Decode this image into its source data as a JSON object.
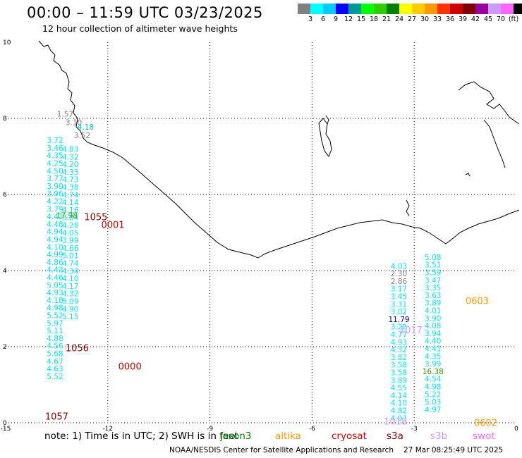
{
  "header": {
    "title": "00:00 – 11:59 UTC 03/23/2025",
    "subtitle": "12 hour collection of altimeter wave heights"
  },
  "colorbar": {
    "colors": [
      "#808080",
      "#00ffff",
      "#00ccff",
      "#0000ff",
      "#009999",
      "#00ff00",
      "#33cc00",
      "#008000",
      "#ffff00",
      "#ffcc00",
      "#ff9900",
      "#ff3300",
      "#cc0000",
      "#800000",
      "#990099",
      "#cc99ff",
      "#ff66ff",
      "#000000"
    ],
    "labels": [
      "3",
      "6",
      "9",
      "12",
      "15",
      "18",
      "21",
      "24",
      "27",
      "30",
      "33",
      "36",
      "39",
      "42",
      "45",
      "70",
      "(ft)"
    ]
  },
  "axes": {
    "x_ticks": [
      "-15",
      "-12",
      "-9",
      "-6",
      "-3",
      "0"
    ],
    "y_ticks": [
      "0",
      "2",
      "4",
      "6",
      "8",
      "10"
    ]
  },
  "tracks": [
    {
      "name": "track-west-1",
      "color": "#00e5ee",
      "lon": -13.55,
      "lat_start": 7.35,
      "lat_step": -0.2,
      "values": [
        "3.72",
        "3.46",
        "4.35",
        "4.25",
        "4.50",
        "3.77",
        "3.90",
        "3.96",
        "4.22",
        "3.79",
        "4.41",
        "4.48",
        "4.94",
        "4.94",
        "4.10",
        "4.99",
        "4.86",
        "4.43",
        "4.46",
        "5.05",
        "4.93",
        "4.18",
        "4.98",
        "5.52",
        "5.97",
        "5.11",
        "4.88",
        "4.56",
        "5.68",
        "4.67",
        "4.63",
        "5.52"
      ]
    },
    {
      "name": "track-west-2",
      "color": "#00e5ee",
      "lon": -13.1,
      "lat_start": 7.12,
      "lat_step": -0.2,
      "values": [
        "4.83",
        "4.32",
        "4.20",
        "4.33",
        "4.73",
        "4.38",
        "4.74",
        "4.14",
        "4.16",
        "3.84",
        "4.28",
        "4.05",
        "3.99",
        "4.66",
        "5.01",
        "4.74",
        "4.34",
        "4.10",
        "4.17",
        "4.32",
        "5.09",
        "4.90",
        "5.15"
      ]
    },
    {
      "name": "track-east-1",
      "color": "#00e5ee",
      "lon": -3.45,
      "lat_start": 4.05,
      "lat_step": -0.2,
      "values": [
        "4.03",
        "2.30",
        "2.86",
        "3.17",
        "3.45",
        "3.31",
        "3.02",
        "11.79",
        "3.28",
        "4.77",
        "4.93",
        "4.32",
        "3.82",
        "3.58",
        "3.58",
        "3.89",
        "4.55",
        "4.14",
        "4.10",
        "4.82",
        "4.93"
      ]
    },
    {
      "name": "track-east-2",
      "color": "#00e5ee",
      "lon": -2.45,
      "lat_start": 4.28,
      "lat_step": -0.2,
      "values": [
        "5.08",
        "3.51",
        "3.59",
        "3.47",
        "3.35",
        "3.63",
        "3.89",
        "4.01",
        "3.90",
        "4.08",
        "3.94",
        "4.40",
        "4.41",
        "4.35",
        "3.99",
        "16.38",
        "4.54",
        "4.98",
        "5.22",
        "5.03",
        "4.97"
      ]
    }
  ],
  "value_colors": {
    "2.30": "#808080",
    "2.86": "#808080",
    "11.79": "#000099",
    "16.38": "#339900",
    "17.98": "#339900"
  },
  "scattered_values": [
    {
      "text": "1.57",
      "color": "#808080",
      "lon": -13.25,
      "lat": 8.05
    },
    {
      "text": "3.10",
      "color": "#808080",
      "lon": -13.0,
      "lat": 7.82
    },
    {
      "text": "4.18",
      "color": "#00bcd4",
      "lon": -12.65,
      "lat": 7.7
    },
    {
      "text": "3.52",
      "color": "#808080",
      "lon": -12.75,
      "lat": 7.48
    },
    {
      "text": "17.98",
      "color": "#339900",
      "lon": -13.2,
      "lat": 5.38
    }
  ],
  "time_labels": [
    {
      "text": "1055",
      "color": "#800000",
      "lon": -12.35,
      "lat": 5.32
    },
    {
      "text": "0001",
      "color": "#cc0000",
      "lon": -11.85,
      "lat": 5.12
    },
    {
      "text": "1056",
      "color": "#800000",
      "lon": -12.9,
      "lat": 1.88
    },
    {
      "text": "0000",
      "color": "#cc0000",
      "lon": -11.35,
      "lat": 1.4
    },
    {
      "text": "1057",
      "color": "#800000",
      "lon": -13.5,
      "lat": 0.08
    },
    {
      "text": "0603",
      "color": "#ff9900",
      "lon": -1.15,
      "lat": 3.12
    },
    {
      "text": "1017",
      "color": "#cc99ff",
      "lon": -3.1,
      "lat": 2.35
    },
    {
      "text": "1018",
      "color": "#cc99ff",
      "lon": -3.55,
      "lat": -0.05
    },
    {
      "text": "0602",
      "color": "#ff9900",
      "lon": -0.9,
      "lat": -0.08
    }
  ],
  "legend": {
    "note": "note: 1) Time is in UTC; 2) SWH is in feet",
    "items": [
      {
        "label": "jason3",
        "color": "#008000"
      },
      {
        "label": "altika",
        "color": "#ff9900"
      },
      {
        "label": "cryosat",
        "color": "#cc0000"
      },
      {
        "label": "s3a",
        "color": "#800000"
      },
      {
        "label": "s3b",
        "color": "#cc99ff"
      },
      {
        "label": "swot",
        "color": "#ff66ff"
      }
    ]
  },
  "footer": {
    "agency": "NOAA/NESDIS Center for Satellite Applications and Research",
    "timestamp": "27 Mar 08:25:49 UTC 2025"
  }
}
